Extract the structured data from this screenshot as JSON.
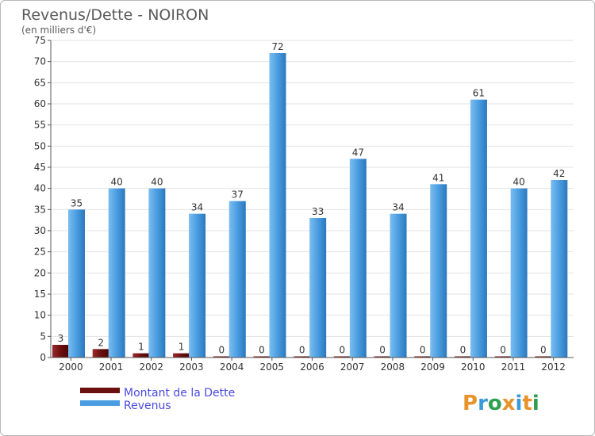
{
  "chart_data": {
    "type": "bar",
    "title": "Revenus/Dette - NOIRON",
    "subtitle": "(en milliers d'€)",
    "categories": [
      "2000",
      "2001",
      "2002",
      "2003",
      "2004",
      "2005",
      "2006",
      "2007",
      "2008",
      "2009",
      "2010",
      "2011",
      "2012"
    ],
    "series": [
      {
        "name": "Montant de la Dette",
        "color": "#6b0f0f",
        "values": [
          3,
          2,
          1,
          1,
          0,
          0,
          0,
          0,
          0,
          0,
          0,
          0,
          0
        ]
      },
      {
        "name": "Revenus",
        "color": "#4a9de0",
        "values": [
          35,
          40,
          40,
          34,
          37,
          72,
          33,
          47,
          34,
          41,
          61,
          40,
          42
        ]
      }
    ],
    "ylim": [
      0,
      75
    ],
    "yticks": [
      0,
      5,
      10,
      15,
      20,
      25,
      30,
      35,
      40,
      45,
      50,
      55,
      60,
      65,
      70,
      75
    ],
    "grid": true,
    "legend_position": "bottom-left"
  },
  "branding": {
    "logo_text": "Proxiti",
    "logo_colors": [
      "#e8922a",
      "#3a9ad9",
      "#2e9e4f",
      "#e8922a",
      "#3a9ad9",
      "#e8922a",
      "#2e9e4f"
    ]
  }
}
